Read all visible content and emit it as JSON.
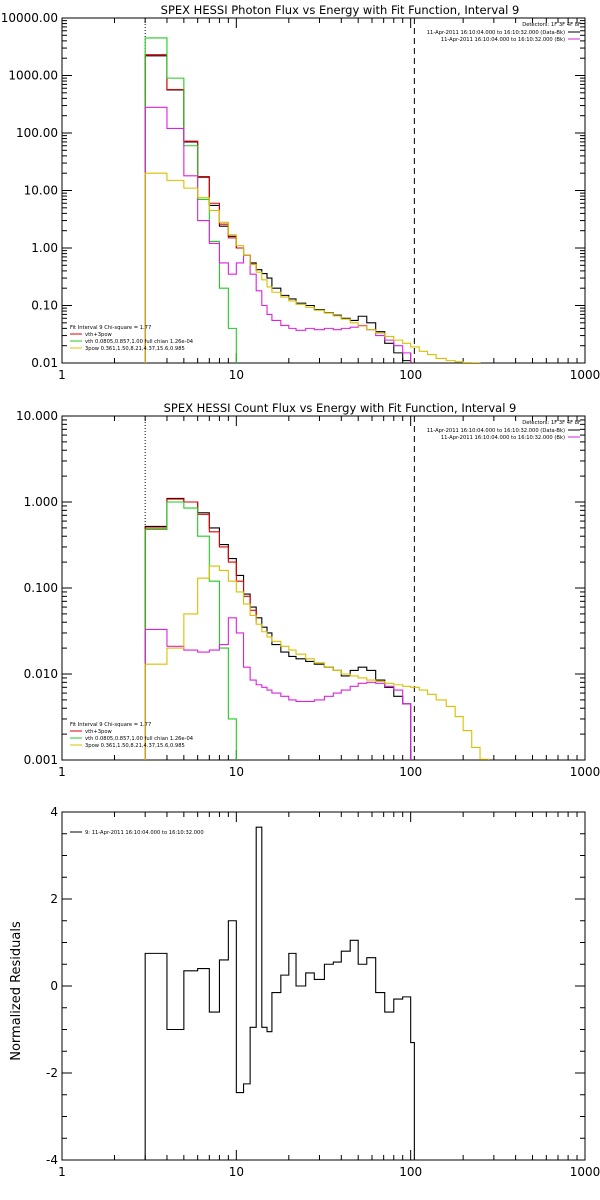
{
  "colors": {
    "black": "#000000",
    "red": "#e00000",
    "green": "#22cc22",
    "magenta": "#dd22dd",
    "yellow": "#d8c000"
  },
  "chart_data": [
    {
      "type": "line",
      "title": "SPEX HESSI Photon Flux vs Energy with Fit Function, Interval 9",
      "xscale": "log",
      "yscale": "log",
      "xlim": [
        1,
        1000
      ],
      "ylim": [
        0.01,
        10000
      ],
      "x_ticks": [
        "1",
        "10",
        "100",
        "1000"
      ],
      "y_ticks": [
        "0.01",
        "0.10",
        "1.00",
        "10.00",
        "100.00",
        "1000.00",
        "10000.00"
      ],
      "y_tick_values": [
        0.01,
        0.1,
        1,
        10,
        100,
        1000,
        10000
      ],
      "vlines": [
        {
          "x": 3,
          "style": "dotted"
        },
        {
          "x": 105,
          "style": "dashed"
        }
      ],
      "legend_right": {
        "header": "Detectors: 1F 3F 4F 8F",
        "entries": [
          {
            "text": "11-Apr-2011 16:10:04.000 to 16:10:32.000 (Data-Bk)",
            "color": "#000000"
          },
          {
            "text": "11-Apr-2011 16:10:04.000 to 16:10:32.000 (Bk)",
            "color": "#dd22dd"
          }
        ]
      },
      "legend_left": {
        "header": "Fit Interval 9   Chi-square = 1.77",
        "entries": [
          {
            "text": "vth+3pow",
            "color": "#e00000"
          },
          {
            "text": "vth 0.0805,0.857,1.00  full chian 1.26e-04",
            "color": "#22cc22"
          },
          {
            "text": "3pow 0.361,1.50,8.21,4.37,15.6,0.985",
            "color": "#d8c000"
          }
        ]
      },
      "series": [
        {
          "color": "#000000",
          "edges": [
            3.0,
            4.0,
            5.0,
            6.0,
            7.0,
            8.0,
            9.0,
            10.0,
            11.0,
            12.0,
            13.0,
            14.0,
            15.0,
            16.0,
            18.0,
            20.0,
            22.0,
            25.0,
            28.0,
            32.0,
            36.0,
            40.0,
            45.0,
            50.0,
            56.0,
            63.0,
            71.0,
            80.0,
            90.0,
            100.0
          ],
          "values": [
            2200,
            560,
            70,
            17,
            5.5,
            2.4,
            1.6,
            1.0,
            0.75,
            0.55,
            0.42,
            0.36,
            0.3,
            0.2,
            0.15,
            0.13,
            0.11,
            0.1,
            0.085,
            0.075,
            0.068,
            0.06,
            0.055,
            0.065,
            0.05,
            0.035,
            0.022,
            0.015,
            0.011
          ]
        },
        {
          "color": "#e00000",
          "edges": [
            3.0,
            4.0,
            5.0,
            6.0,
            7.0,
            8.0,
            9.0,
            10.0,
            11.0,
            12.0,
            13.0
          ],
          "values": [
            2300,
            570,
            72,
            17.5,
            6.0,
            2.6,
            1.5,
            1.0,
            0.75,
            0.52,
            0.4
          ]
        },
        {
          "color": "#22cc22",
          "edges": [
            3.0,
            4.0,
            5.0,
            6.0,
            7.0,
            8.0,
            9.0,
            10.0
          ],
          "values": [
            4500,
            900,
            60,
            7.0,
            1.3,
            0.2,
            0.04
          ]
        },
        {
          "color": "#dd22dd",
          "edges": [
            3.0,
            4.0,
            5.0,
            6.0,
            7.0,
            8.0,
            9.0,
            10.0,
            11.0,
            12.0,
            13.0,
            14.0,
            15.0,
            16.0,
            18.0,
            20.0,
            22.0,
            25.0,
            28.0,
            32.0,
            36.0,
            40.0,
            45.0,
            50.0,
            56.0,
            63.0,
            71.0,
            80.0,
            90.0,
            100.0
          ],
          "values": [
            280,
            120,
            18,
            3.0,
            1.2,
            0.55,
            0.35,
            0.55,
            0.75,
            0.35,
            0.18,
            0.1,
            0.07,
            0.055,
            0.045,
            0.04,
            0.037,
            0.04,
            0.038,
            0.04,
            0.038,
            0.04,
            0.042,
            0.045,
            0.038,
            0.03,
            0.025,
            0.02,
            0.015
          ]
        },
        {
          "color": "#d8c000",
          "edges": [
            3.0,
            4.0,
            5.0,
            6.0,
            7.0,
            8.0,
            9.0,
            10.0,
            11.0,
            12.0,
            13.0,
            14.0,
            15.0,
            16.0,
            18.0,
            20.0,
            22.0,
            25.0,
            28.0,
            32.0,
            36.0,
            40.0,
            45.0,
            50.0,
            56.0,
            63.0,
            71.0,
            80.0,
            90.0,
            100.0,
            112.0,
            125.0,
            140.0,
            160.0,
            180.0,
            200.0,
            224.0,
            250.0
          ],
          "values": [
            20,
            15,
            11,
            7.5,
            4.5,
            2.8,
            1.7,
            1.1,
            0.75,
            0.52,
            0.38,
            0.28,
            0.21,
            0.17,
            0.14,
            0.12,
            0.105,
            0.093,
            0.083,
            0.074,
            0.066,
            0.058,
            0.05,
            0.044,
            0.038,
            0.033,
            0.029,
            0.025,
            0.022,
            0.019,
            0.016,
            0.014,
            0.012,
            0.011,
            0.0105,
            0.0102,
            0.0101
          ]
        }
      ]
    },
    {
      "type": "line",
      "title": "SPEX HESSI Count Flux vs Energy with Fit Function, Interval 9",
      "xscale": "log",
      "yscale": "log",
      "xlim": [
        1,
        1000
      ],
      "ylim": [
        0.001,
        10
      ],
      "x_ticks": [
        "1",
        "10",
        "100",
        "1000"
      ],
      "y_ticks": [
        "0.001",
        "0.010",
        "0.100",
        "1.000",
        "10.000"
      ],
      "y_tick_values": [
        0.001,
        0.01,
        0.1,
        1,
        10
      ],
      "vlines": [
        {
          "x": 3,
          "style": "dotted"
        },
        {
          "x": 105,
          "style": "dashed"
        }
      ],
      "legend_right": {
        "header": "Detectors: 1F 3F 4F 8F",
        "entries": [
          {
            "text": "11-Apr-2011 16:10:04.000 to 16:10:32.000 (Data-Bk)",
            "color": "#000000"
          },
          {
            "text": "11-Apr-2011 16:10:04.000 to 16:10:32.000 (Bk)",
            "color": "#dd22dd"
          }
        ]
      },
      "legend_left": {
        "header": "Fit Interval 9   Chi-square = 1.77",
        "entries": [
          {
            "text": "vth+3pow",
            "color": "#e00000"
          },
          {
            "text": "vth 0.0805,0.857,1.00  full chian 1.26e-04",
            "color": "#22cc22"
          },
          {
            "text": "3pow 0.361,1.50,8.21,4.37,15.6,0.985",
            "color": "#d8c000"
          }
        ]
      },
      "series": [
        {
          "color": "#000000",
          "edges": [
            3.0,
            4.0,
            5.0,
            6.0,
            7.0,
            8.0,
            9.0,
            10.0,
            11.0,
            12.0,
            13.0,
            14.0,
            15.0,
            16.0,
            18.0,
            20.0,
            22.0,
            25.0,
            28.0,
            32.0,
            36.0,
            40.0,
            45.0,
            50.0,
            56.0,
            63.0,
            71.0,
            80.0,
            90.0,
            100.0
          ],
          "values": [
            0.52,
            1.1,
            1.0,
            0.75,
            0.5,
            0.32,
            0.22,
            0.14,
            0.085,
            0.06,
            0.045,
            0.035,
            0.03,
            0.022,
            0.018,
            0.016,
            0.015,
            0.014,
            0.013,
            0.012,
            0.011,
            0.0095,
            0.011,
            0.012,
            0.011,
            0.0085,
            0.007,
            0.0055,
            0.0045
          ]
        },
        {
          "color": "#e00000",
          "edges": [
            3.0,
            4.0,
            5.0,
            6.0,
            7.0,
            8.0,
            9.0,
            10.0,
            11.0,
            12.0,
            13.0
          ],
          "values": [
            0.5,
            1.08,
            1.0,
            0.72,
            0.45,
            0.3,
            0.2,
            0.12,
            0.08,
            0.055,
            0.04
          ]
        },
        {
          "color": "#22cc22",
          "edges": [
            3.0,
            4.0,
            5.0,
            6.0,
            7.0,
            8.0,
            9.0,
            10.0
          ],
          "values": [
            0.48,
            1.0,
            0.85,
            0.4,
            0.12,
            0.02,
            0.003
          ]
        },
        {
          "color": "#dd22dd",
          "edges": [
            3.0,
            4.0,
            5.0,
            6.0,
            7.0,
            8.0,
            9.0,
            10.0,
            11.0,
            12.0,
            13.0,
            14.0,
            15.0,
            16.0,
            18.0,
            20.0,
            22.0,
            25.0,
            28.0,
            32.0,
            36.0,
            40.0,
            45.0,
            50.0,
            56.0,
            63.0,
            71.0,
            80.0,
            90.0,
            100.0
          ],
          "values": [
            0.033,
            0.021,
            0.019,
            0.018,
            0.019,
            0.022,
            0.045,
            0.03,
            0.012,
            0.0085,
            0.0075,
            0.007,
            0.0065,
            0.006,
            0.0055,
            0.005,
            0.0048,
            0.0048,
            0.005,
            0.0055,
            0.006,
            0.0065,
            0.0072,
            0.0078,
            0.008,
            0.0078,
            0.0072,
            0.0065,
            0.0045
          ]
        },
        {
          "color": "#d8c000",
          "edges": [
            3.0,
            4.0,
            5.0,
            6.0,
            7.0,
            8.0,
            9.0,
            10.0,
            11.0,
            12.0,
            13.0,
            14.0,
            15.0,
            16.0,
            18.0,
            20.0,
            22.0,
            25.0,
            28.0,
            32.0,
            36.0,
            40.0,
            45.0,
            50.0,
            56.0,
            63.0,
            71.0,
            80.0,
            90.0,
            100.0,
            112.0,
            125.0,
            140.0,
            160.0,
            180.0,
            200.0,
            224.0,
            250.0,
            280.0
          ],
          "values": [
            0.013,
            0.02,
            0.05,
            0.13,
            0.18,
            0.16,
            0.12,
            0.09,
            0.065,
            0.048,
            0.038,
            0.031,
            0.027,
            0.024,
            0.021,
            0.019,
            0.017,
            0.015,
            0.0135,
            0.012,
            0.011,
            0.01,
            0.0095,
            0.009,
            0.0085,
            0.0082,
            0.0078,
            0.0075,
            0.0072,
            0.007,
            0.0065,
            0.0058,
            0.005,
            0.0042,
            0.0032,
            0.0022,
            0.0014,
            0.00102
          ]
        }
      ]
    },
    {
      "type": "line",
      "title": "",
      "ylabel": "Normalized Residuals",
      "xscale": "log",
      "yscale": "linear",
      "xlim": [
        1,
        1000
      ],
      "ylim": [
        -4,
        4
      ],
      "x_ticks": [
        "1",
        "10",
        "100",
        "1000"
      ],
      "y_ticks": [
        "-4",
        "-2",
        "0",
        "2",
        "4"
      ],
      "y_tick_values": [
        -4,
        -2,
        0,
        2,
        4
      ],
      "legend_left": {
        "header": "",
        "entries": [
          {
            "text": "9: 11-Apr-2011 16:10:04.000 to 16:10:32.000",
            "color": "#000000"
          }
        ]
      },
      "series": [
        {
          "color": "#000000",
          "edges": [
            3.0,
            4.0,
            5.0,
            6.0,
            7.0,
            8.0,
            9.0,
            10.0,
            11.0,
            12.0,
            13.0,
            14.0,
            15.0,
            16.0,
            18.0,
            20.0,
            22.0,
            25.0,
            28.0,
            32.0,
            36.0,
            40.0,
            45.0,
            50.0,
            56.0,
            63.0,
            71.0,
            80.0,
            90.0,
            100.0,
            105.0
          ],
          "values": [
            0.75,
            -1.0,
            0.35,
            0.4,
            -0.6,
            0.6,
            1.5,
            -2.45,
            -2.25,
            -0.95,
            3.65,
            -0.95,
            -1.05,
            -0.15,
            0.25,
            0.75,
            0.0,
            0.3,
            0.15,
            0.5,
            0.55,
            0.8,
            1.05,
            0.5,
            0.65,
            -0.15,
            -0.6,
            -0.3,
            -0.25,
            -1.3
          ],
          "drop_to_floor": true
        }
      ]
    }
  ]
}
